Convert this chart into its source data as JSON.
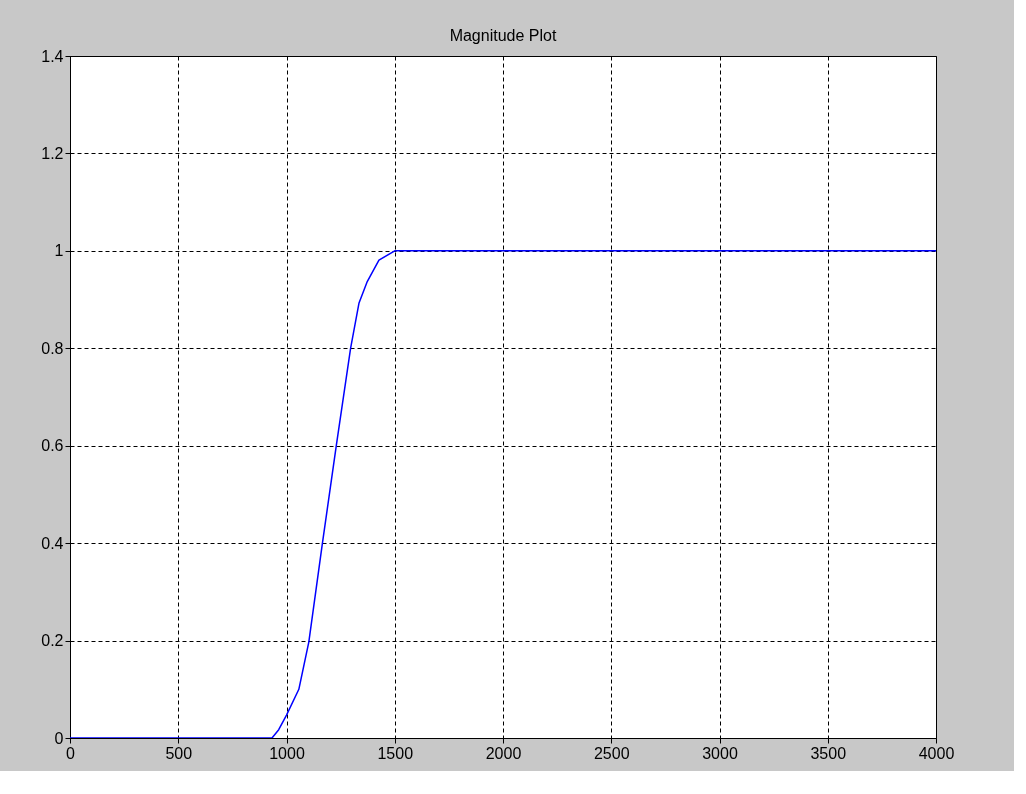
{
  "chart_data": {
    "type": "line",
    "title": "Magnitude Plot",
    "series": [
      {
        "color": "#0000ff",
        "x": [
          0,
          933,
          964,
          1000,
          1057,
          1103,
          1165,
          1230,
          1296,
          1335,
          1373,
          1427,
          1500,
          4000
        ],
        "values": [
          0,
          0,
          0.017,
          0.047,
          0.1,
          0.197,
          0.397,
          0.6,
          0.8,
          0.893,
          0.937,
          0.981,
          1,
          1
        ]
      }
    ],
    "xlim": [
      0,
      4000
    ],
    "xticks": [
      0,
      500,
      1000,
      1500,
      2000,
      2500,
      3000,
      3500,
      4000
    ],
    "ylim": [
      0,
      1.4
    ],
    "yticks": [
      0,
      0.2,
      0.4,
      0.6,
      0.8,
      1,
      1.2,
      1.4
    ],
    "grid": true,
    "marker": "none",
    "line_style": "solid"
  }
}
